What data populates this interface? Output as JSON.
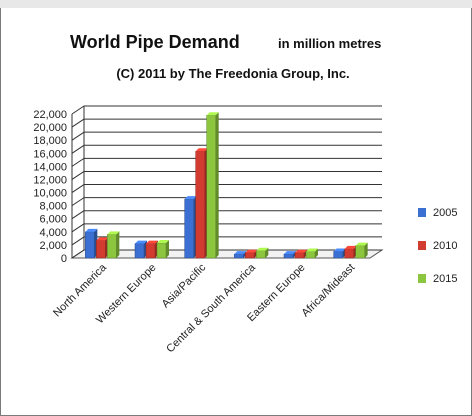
{
  "chart_data": {
    "type": "bar",
    "title": "World Pipe Demand",
    "title_unit": "in million metres",
    "subtitle": "(C) 2011 by The Freedonia Group, Inc.",
    "categories": [
      "North America",
      "Western Europe",
      "Asia/Pacific",
      "Central & South America",
      "Eastern Europe",
      "Africa/Mideast"
    ],
    "series": [
      {
        "name": "2005",
        "color": "#3b6fd1",
        "values": [
          4000,
          2200,
          9000,
          600,
          600,
          1000
        ]
      },
      {
        "name": "2010",
        "color": "#d23b2f",
        "values": [
          2700,
          2200,
          16300,
          800,
          800,
          1400
        ]
      },
      {
        "name": "2015",
        "color": "#8cc63f",
        "values": [
          3600,
          2300,
          21800,
          1100,
          1000,
          1900
        ]
      }
    ],
    "yticks": [
      "0",
      "2,000",
      "4,000",
      "6,000",
      "8,000",
      "10,000",
      "12,000",
      "14,000",
      "16,000",
      "18,000",
      "20,000",
      "22,000"
    ],
    "ylim": [
      0,
      22000
    ],
    "grid": true,
    "legend_position": "right",
    "style": "3d-clustered-column"
  }
}
